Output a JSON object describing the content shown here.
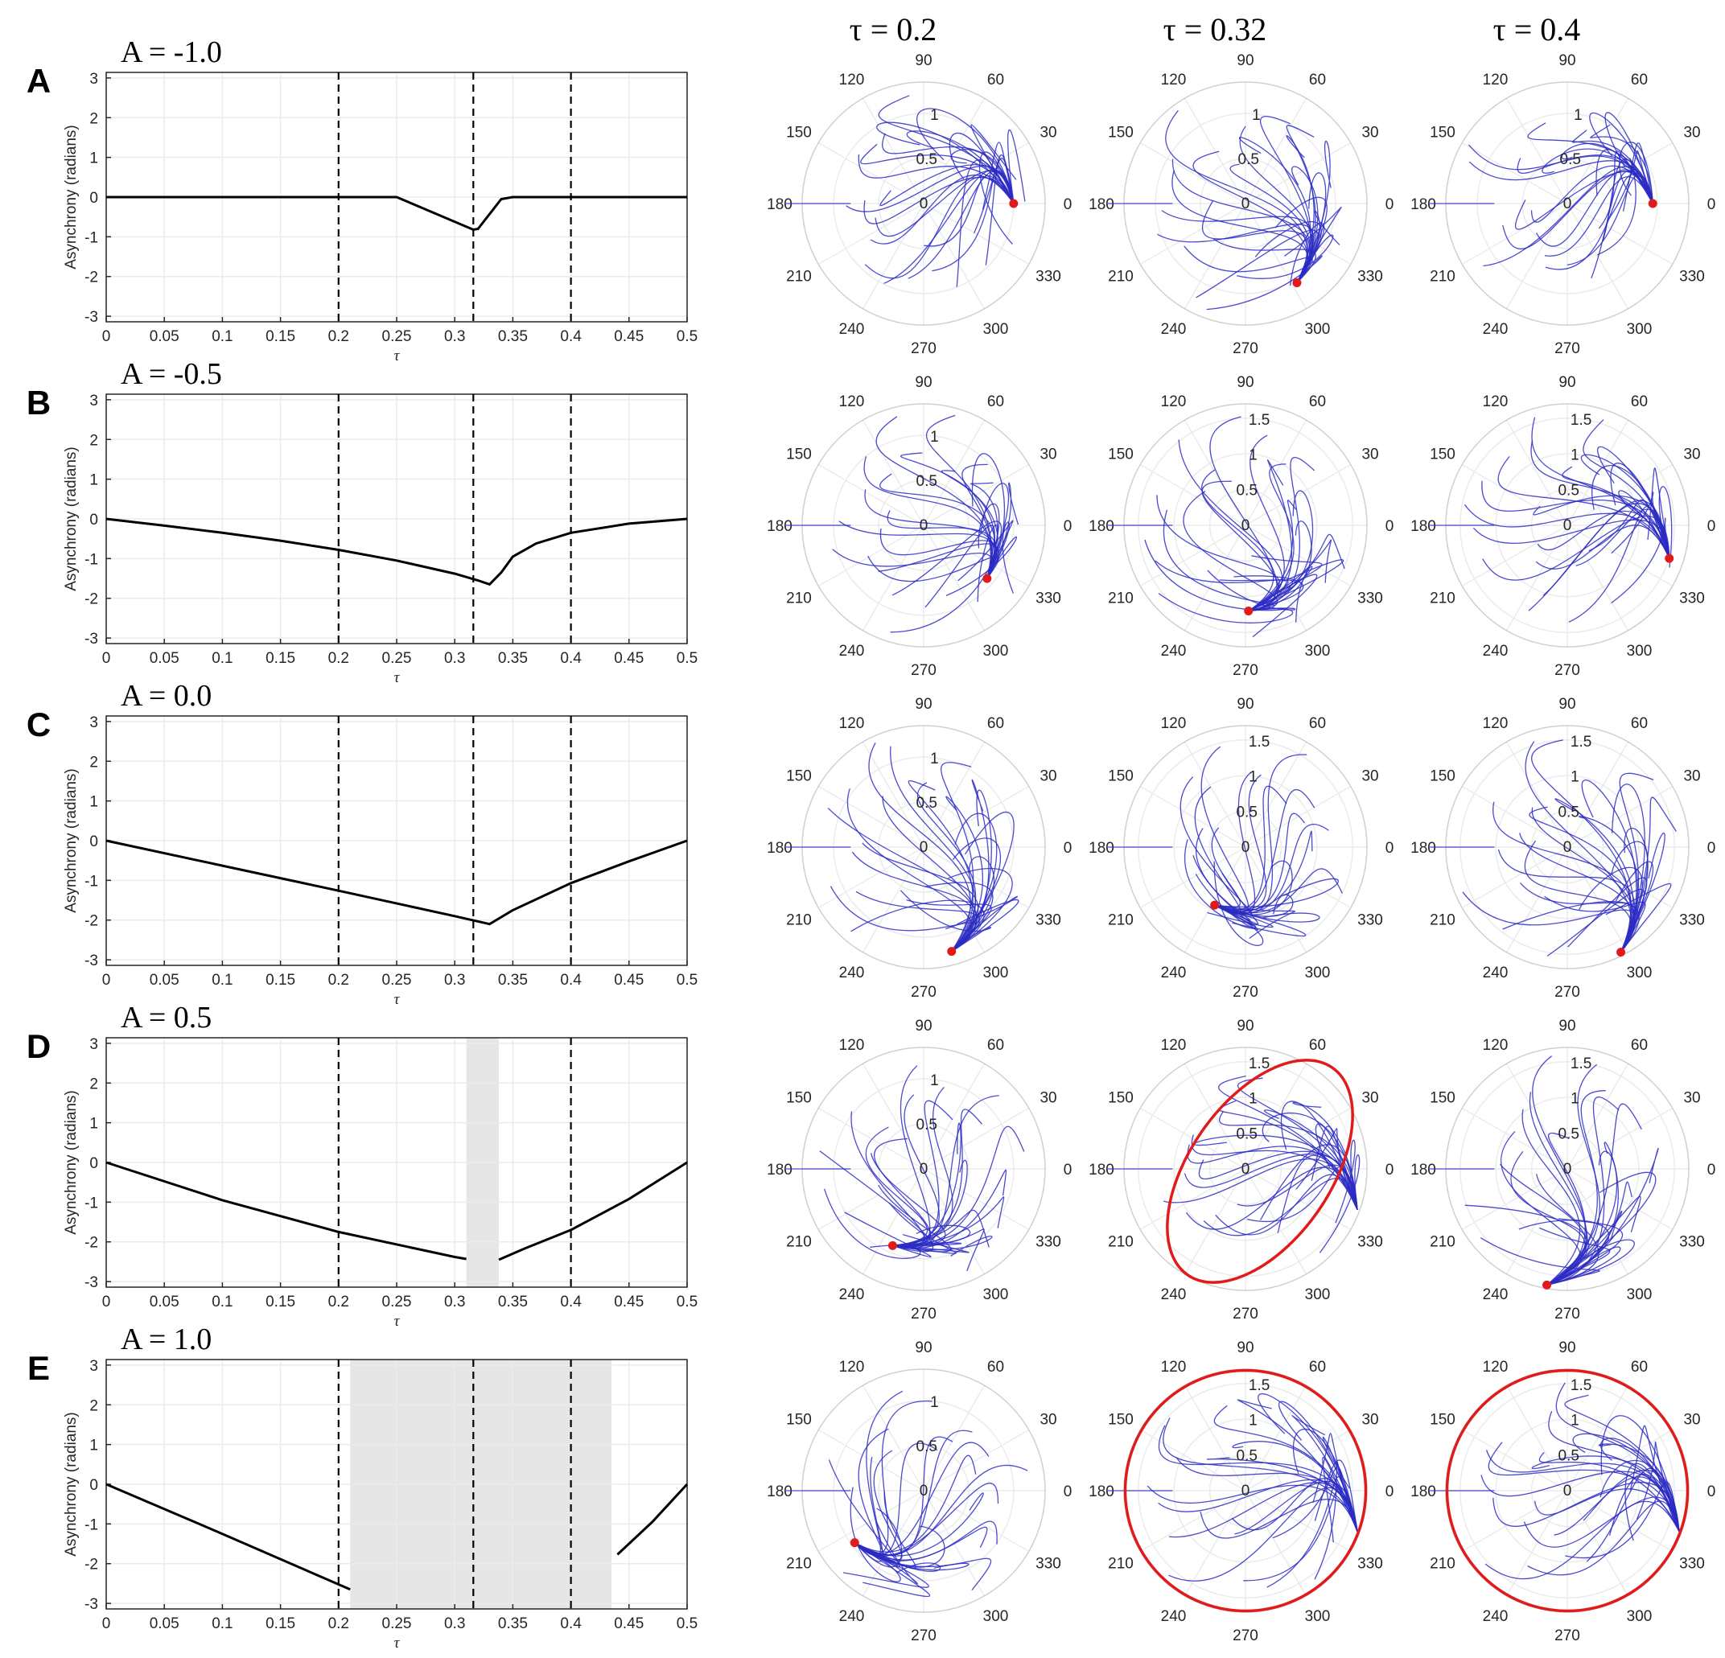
{
  "column_titles": [
    "τ = 0.2",
    "τ = 0.32",
    "τ = 0.4"
  ],
  "colors": {
    "curve": "#000000",
    "dashed": "#000000",
    "shade": "#e6e6e6",
    "grid": "#ebebeb",
    "trajectory": "#2b2bc4",
    "attractor": "#e11b1b"
  },
  "polar_angle_ticks": [
    "0",
    "30",
    "60",
    "90",
    "120",
    "150",
    "180",
    "210",
    "240",
    "270",
    "300",
    "330"
  ],
  "chart_data": [
    {
      "type": "line",
      "panel": "A",
      "title": "A = -1.0",
      "xlabel": "τ",
      "ylabel": "Asynchrony (radians)",
      "xlim": [
        0,
        0.5
      ],
      "ylim": [
        -3.14,
        3.14
      ],
      "xticks": [
        "0",
        "0.05",
        "0.1",
        "0.15",
        "0.2",
        "0.25",
        "0.3",
        "0.35",
        "0.4",
        "0.45",
        "0.5"
      ],
      "yticks": [
        "3",
        "2",
        "1",
        "0",
        "-1",
        "-2",
        "-3"
      ],
      "vlines": [
        0.2,
        0.316,
        0.4
      ],
      "shaded": [],
      "series": [
        {
          "x": [
            0,
            0.25,
            0.316,
            0.32,
            0.34,
            0.35,
            0.5
          ],
          "y": [
            0,
            0,
            -0.82,
            -0.8,
            -0.05,
            0,
            0
          ]
        }
      ],
      "polar": [
        {
          "rticks": [
            "0",
            "0.5",
            "1"
          ],
          "rmax": 1.35,
          "point": [
            0,
            1
          ],
          "limit_cycle": null
        },
        {
          "rticks": [
            "0",
            "0.5",
            "1"
          ],
          "rmax": 1.35,
          "point": [
            -57,
            1.05
          ],
          "limit_cycle": null
        },
        {
          "rticks": [
            "0",
            "0.5",
            "1"
          ],
          "rmax": 1.35,
          "point": [
            0,
            0.95
          ],
          "limit_cycle": null
        }
      ]
    },
    {
      "type": "line",
      "panel": "B",
      "title": "A = -0.5",
      "xlabel": "τ",
      "ylabel": "Asynchrony (radians)",
      "xlim": [
        0,
        0.5
      ],
      "ylim": [
        -3.14,
        3.14
      ],
      "xticks": [
        "0",
        "0.05",
        "0.1",
        "0.15",
        "0.2",
        "0.25",
        "0.3",
        "0.35",
        "0.4",
        "0.45",
        "0.5"
      ],
      "yticks": [
        "3",
        "2",
        "1",
        "0",
        "-1",
        "-2",
        "-3"
      ],
      "vlines": [
        0.2,
        0.316,
        0.4
      ],
      "shaded": [],
      "series": [
        {
          "x": [
            0,
            0.05,
            0.1,
            0.15,
            0.2,
            0.25,
            0.3,
            0.32,
            0.33,
            0.34,
            0.35,
            0.37,
            0.4,
            0.45,
            0.5
          ],
          "y": [
            0,
            -0.17,
            -0.35,
            -0.55,
            -0.78,
            -1.05,
            -1.38,
            -1.55,
            -1.65,
            -1.35,
            -0.95,
            -0.62,
            -0.35,
            -0.12,
            0
          ]
        }
      ],
      "polar": [
        {
          "rticks": [
            "0",
            "0.5",
            "1"
          ],
          "rmax": 1.35,
          "point": [
            -40,
            0.92
          ],
          "limit_cycle": null
        },
        {
          "rticks": [
            "0",
            "0.5",
            "1",
            "1.5"
          ],
          "rmax": 1.7,
          "point": [
            -88,
            1.2
          ],
          "limit_cycle": null
        },
        {
          "rticks": [
            "0",
            "0.5",
            "1",
            "1.5"
          ],
          "rmax": 1.7,
          "point": [
            -18,
            1.5
          ],
          "limit_cycle": null
        }
      ]
    },
    {
      "type": "line",
      "panel": "C",
      "title": "A = 0.0",
      "xlabel": "τ",
      "ylabel": "Asynchrony (radians)",
      "xlim": [
        0,
        0.5
      ],
      "ylim": [
        -3.14,
        3.14
      ],
      "xticks": [
        "0",
        "0.05",
        "0.1",
        "0.15",
        "0.2",
        "0.25",
        "0.3",
        "0.35",
        "0.4",
        "0.45",
        "0.5"
      ],
      "yticks": [
        "3",
        "2",
        "1",
        "0",
        "-1",
        "-2",
        "-3"
      ],
      "vlines": [
        0.2,
        0.316,
        0.4
      ],
      "shaded": [],
      "series": [
        {
          "x": [
            0,
            0.1,
            0.2,
            0.3,
            0.33,
            0.35,
            0.4,
            0.45,
            0.5
          ],
          "y": [
            0,
            -0.63,
            -1.26,
            -1.9,
            -2.1,
            -1.75,
            -1.07,
            -0.52,
            0
          ]
        }
      ],
      "polar": [
        {
          "rticks": [
            "0",
            "0.5",
            "1"
          ],
          "rmax": 1.35,
          "point": [
            -75,
            1.2
          ],
          "limit_cycle": null
        },
        {
          "rticks": [
            "0",
            "0.5",
            "1",
            "1.5"
          ],
          "rmax": 1.7,
          "point": [
            -118,
            0.92
          ],
          "limit_cycle": null
        },
        {
          "rticks": [
            "0",
            "0.5",
            "1",
            "1.5"
          ],
          "rmax": 1.7,
          "point": [
            -63,
            1.65
          ],
          "limit_cycle": null
        }
      ]
    },
    {
      "type": "line",
      "panel": "D",
      "title": "A = 0.5",
      "xlabel": "τ",
      "ylabel": "Asynchrony (radians)",
      "xlim": [
        0,
        0.5
      ],
      "ylim": [
        -3.14,
        3.14
      ],
      "xticks": [
        "0",
        "0.05",
        "0.1",
        "0.15",
        "0.2",
        "0.25",
        "0.3",
        "0.35",
        "0.4",
        "0.45",
        "0.5"
      ],
      "yticks": [
        "3",
        "2",
        "1",
        "0",
        "-1",
        "-2",
        "-3"
      ],
      "vlines": [
        0.2,
        0.4
      ],
      "shaded": [
        [
          0.31,
          0.338
        ]
      ],
      "series": [
        {
          "x": [
            0,
            0.1,
            0.2,
            0.3,
            0.31
          ],
          "y": [
            0,
            -0.95,
            -1.75,
            -2.38,
            -2.43
          ]
        },
        {
          "x": [
            0.338,
            0.36,
            0.4,
            0.45,
            0.5
          ],
          "y": [
            -2.45,
            -2.17,
            -1.7,
            -0.92,
            0
          ]
        }
      ],
      "polar": [
        {
          "rticks": [
            "0",
            "0.5",
            "1"
          ],
          "rmax": 1.35,
          "point": [
            -112,
            0.92
          ],
          "limit_cycle": null
        },
        {
          "rticks": [
            "0",
            "0.5",
            "1",
            "1.5"
          ],
          "rmax": 1.7,
          "point": null,
          "limit_cycle": "tilted"
        },
        {
          "rticks": [
            "0",
            "0.5",
            "1",
            "1.5"
          ],
          "rmax": 1.7,
          "point": [
            -100,
            1.65
          ],
          "limit_cycle": null
        }
      ]
    },
    {
      "type": "line",
      "panel": "E",
      "title": "A = 1.0",
      "xlabel": "τ",
      "ylabel": "Asynchrony (radians)",
      "xlim": [
        0,
        0.5
      ],
      "ylim": [
        -3.14,
        3.14
      ],
      "xticks": [
        "0",
        "0.05",
        "0.1",
        "0.15",
        "0.2",
        "0.25",
        "0.3",
        "0.35",
        "0.4",
        "0.45",
        "0.5"
      ],
      "yticks": [
        "3",
        "2",
        "1",
        "0",
        "-1",
        "-2",
        "-3"
      ],
      "vlines": [
        0.2,
        0.316,
        0.4
      ],
      "shaded": [
        [
          0.21,
          0.435
        ]
      ],
      "series": [
        {
          "x": [
            0,
            0.1,
            0.21
          ],
          "y": [
            0,
            -1.25,
            -2.65
          ]
        },
        {
          "x": [
            0.44,
            0.47,
            0.5
          ],
          "y": [
            -1.77,
            -0.95,
            0
          ]
        }
      ],
      "polar": [
        {
          "rticks": [
            "0",
            "0.5",
            "1"
          ],
          "rmax": 1.35,
          "point": [
            -143,
            0.96
          ],
          "limit_cycle": null
        },
        {
          "rticks": [
            "0",
            "0.5",
            "1",
            "1.5"
          ],
          "rmax": 1.7,
          "point": null,
          "limit_cycle": "circle"
        },
        {
          "rticks": [
            "0",
            "0.5",
            "1",
            "1.5"
          ],
          "rmax": 1.7,
          "point": null,
          "limit_cycle": "circle"
        }
      ]
    }
  ]
}
